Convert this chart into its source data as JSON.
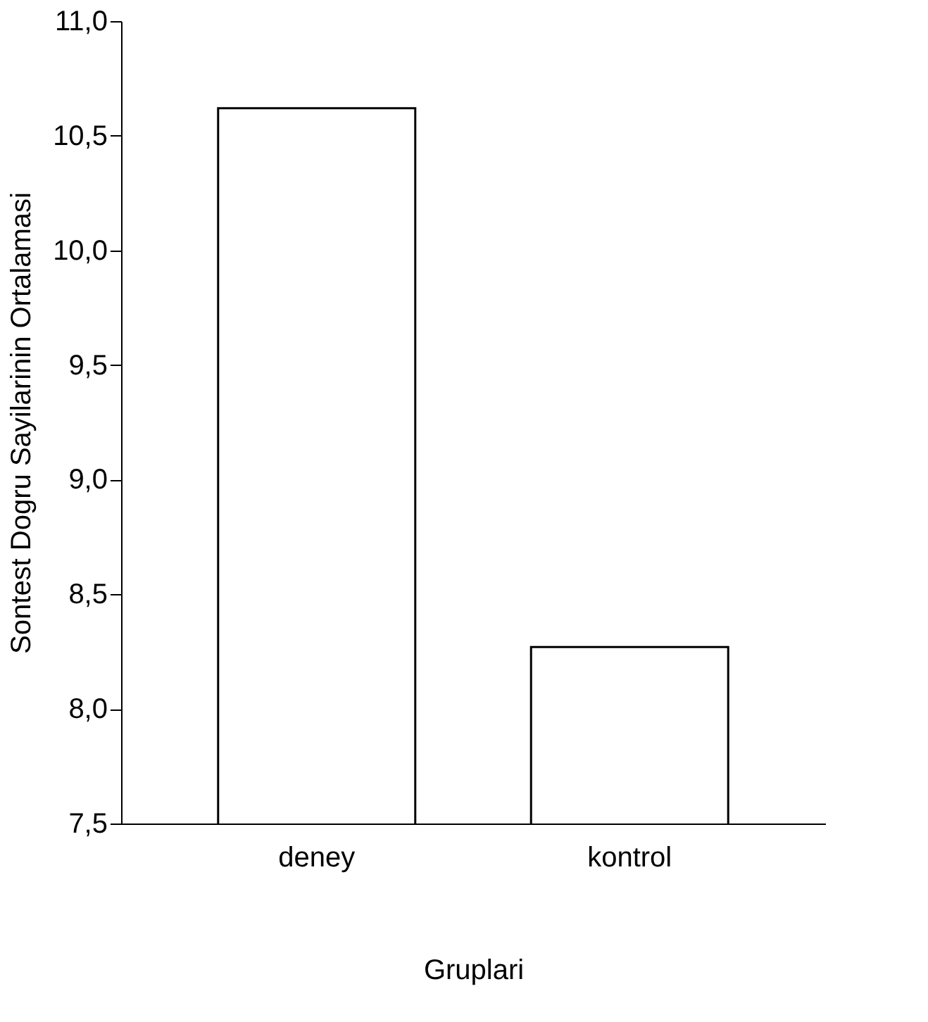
{
  "chart_data": {
    "type": "bar",
    "xlabel": "Gruplari",
    "ylabel": "Sontest Dogru Sayilarinin Ortalamasi",
    "categories": [
      "deney",
      "kontrol"
    ],
    "values": [
      10.62,
      8.27
    ],
    "color": "#ffffff",
    "ylim": [
      7.5,
      11.0
    ],
    "yticks": [
      {
        "value": 7.5,
        "label": "7,5"
      },
      {
        "value": 8.0,
        "label": "8,0"
      },
      {
        "value": 8.5,
        "label": "8,5"
      },
      {
        "value": 9.0,
        "label": "9,0"
      },
      {
        "value": 9.5,
        "label": "9,5"
      },
      {
        "value": 10.0,
        "label": "10,0"
      },
      {
        "value": 10.5,
        "label": "10,5"
      },
      {
        "value": 11.0,
        "label": "11,0"
      }
    ],
    "grid": false,
    "legend": false
  }
}
